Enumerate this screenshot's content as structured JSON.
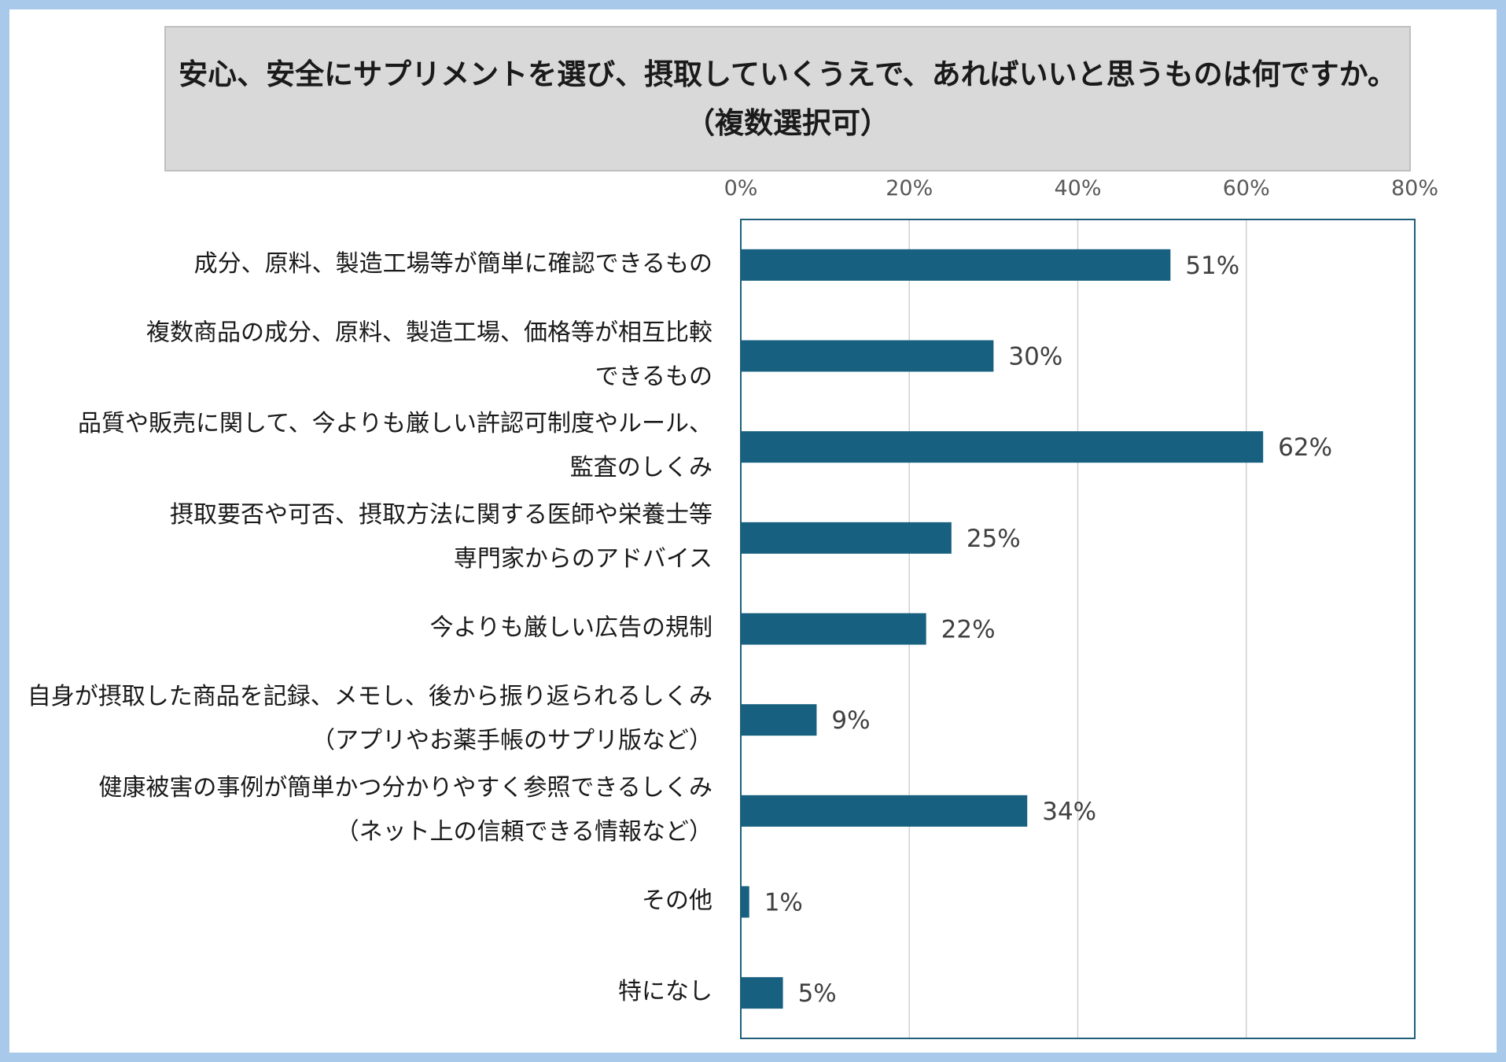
{
  "chart_data": {
    "type": "bar",
    "orientation": "horizontal",
    "title": [
      "安心、安全にサプリメントを選び、摂取していくうえで、あればいいと思うものは何ですか。",
      "（複数選択可）"
    ],
    "categories": [
      [
        "成分、原料、製造工場等が簡単に確認できるもの"
      ],
      [
        "複数商品の成分、原料、製造工場、価格等が相互比較",
        "できるもの"
      ],
      [
        "品質や販売に関して、今よりも厳しい許認可制度やルール、",
        "監査のしくみ"
      ],
      [
        "摂取要否や可否、摂取方法に関する医師や栄養士等",
        "専門家からのアドバイス"
      ],
      [
        "今よりも厳しい広告の規制"
      ],
      [
        "自身が摂取した商品を記録、メモし、後から振り返られるしくみ",
        "（アプリやお薬手帳のサプリ版など）"
      ],
      [
        "健康被害の事例が簡単かつ分かりやすく参照できるしくみ",
        "（ネット上の信頼できる情報など）"
      ],
      [
        "その他"
      ],
      [
        "特になし"
      ]
    ],
    "values": [
      51,
      30,
      62,
      25,
      22,
      9,
      34,
      1,
      5
    ],
    "data_labels": [
      "51%",
      "30%",
      "62%",
      "25%",
      "22%",
      "9%",
      "34%",
      "1%",
      "5%"
    ],
    "xlim": [
      0,
      80
    ],
    "x_ticks": [
      0,
      20,
      40,
      60,
      80
    ],
    "x_tick_labels": [
      "0%",
      "20%",
      "40%",
      "60%",
      "80%"
    ],
    "x_axis_position": "top",
    "grid": true,
    "bar_color": "#17607f",
    "grid_color": "#d0d0d0",
    "border_color": "#1f5f7a",
    "frame_color": "#a9c9ea"
  }
}
